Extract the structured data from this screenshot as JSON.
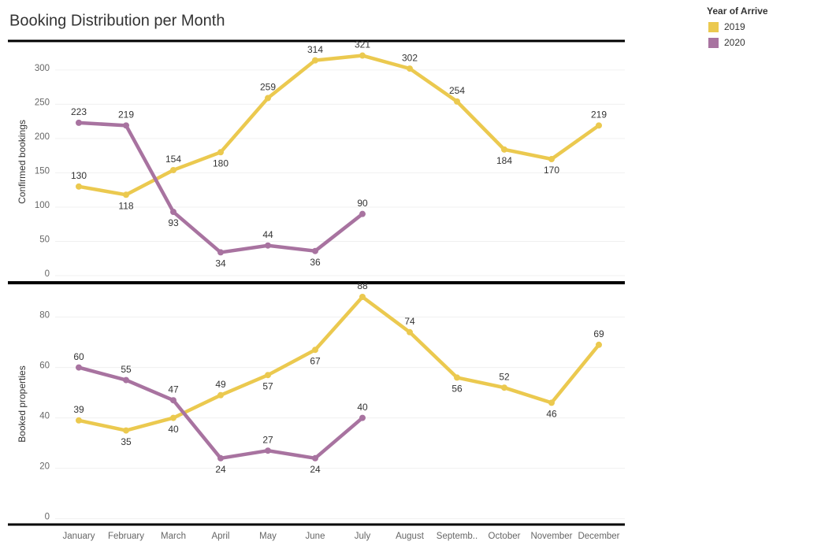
{
  "chart_data": [
    {
      "type": "line",
      "title": "Booking Distribution per Month",
      "legend_title": "Year of Arrive",
      "legend": "top-right",
      "ylabel": "Confirmed bookings",
      "ylim": [
        -8,
        340
      ],
      "yticks": [
        0,
        50,
        100,
        150,
        200,
        250,
        300
      ],
      "grid": true,
      "series": [
        {
          "name": "2019",
          "color": "#ebc94f",
          "values": [
            130,
            118,
            154,
            180,
            259,
            314,
            321,
            302,
            254,
            184,
            170,
            219
          ]
        },
        {
          "name": "2020",
          "color": "#a873a0",
          "values": [
            223,
            219,
            93,
            34,
            44,
            36,
            90,
            null,
            null,
            null,
            null,
            null
          ]
        }
      ]
    },
    {
      "type": "line",
      "ylabel": "Booked properties",
      "ylim": [
        -2,
        93
      ],
      "yticks": [
        0,
        20,
        40,
        60,
        80
      ],
      "grid": true,
      "categories": [
        "January",
        "February",
        "March",
        "April",
        "May",
        "June",
        "July",
        "August",
        "Septemb..",
        "October",
        "November",
        "December"
      ],
      "series": [
        {
          "name": "2019",
          "color": "#ebc94f",
          "values": [
            39,
            35,
            40,
            49,
            57,
            67,
            88,
            74,
            56,
            52,
            46,
            69
          ]
        },
        {
          "name": "2020",
          "color": "#a873a0",
          "values": [
            60,
            55,
            47,
            24,
            27,
            24,
            40,
            null,
            null,
            null,
            null,
            null
          ]
        }
      ]
    }
  ]
}
